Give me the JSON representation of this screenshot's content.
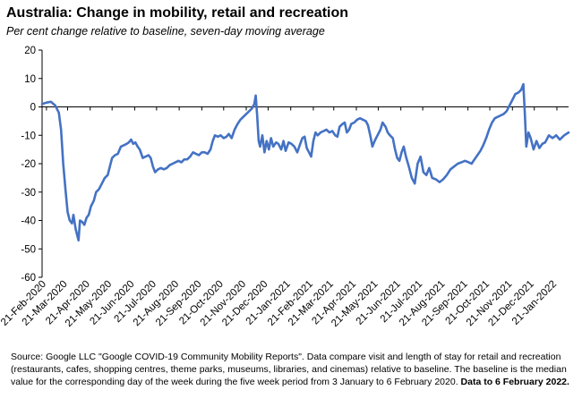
{
  "title": "Australia: Change in mobility, retail and recreation",
  "subtitle": "Per cent change relative to baseline, seven-day moving average",
  "source": {
    "text": "Source: Google LLC \"Google COVID-19 Community Mobility Reports\".  Data compare visit and length of stay for retail and recreation (restaurants, cafes, shopping centres, theme parks, museums, libraries, and cinemas) relative to baseline.  The baseline is the median value for the corresponding day of the week during the five week period from 3 January to 6 February 2020. ",
    "bold": "Data to 6 February 2022."
  },
  "colors": {
    "line": "#4472C4",
    "axis": "#000000"
  },
  "chart_data": {
    "type": "line",
    "title": "Australia: Change in mobility, retail and recreation",
    "subtitle": "Per cent change relative to baseline, seven-day moving average",
    "xlabel": "",
    "ylabel": "",
    "ylim": [
      -60,
      20
    ],
    "yticks": [
      20,
      10,
      0,
      -10,
      -20,
      -30,
      -40,
      -50,
      -60
    ],
    "grid": false,
    "legend": "none",
    "xticks": [
      {
        "date": "2020-02-21",
        "label": "21-Feb-2020"
      },
      {
        "date": "2020-03-21",
        "label": "21-Mar-2020"
      },
      {
        "date": "2020-04-21",
        "label": "21-Apr-2020"
      },
      {
        "date": "2020-05-21",
        "label": "21-May-2020"
      },
      {
        "date": "2020-06-21",
        "label": "21-Jun-2020"
      },
      {
        "date": "2020-07-21",
        "label": "21-Jul-2020"
      },
      {
        "date": "2020-08-21",
        "label": "21-Aug-2020"
      },
      {
        "date": "2020-09-21",
        "label": "21-Sep-2020"
      },
      {
        "date": "2020-10-21",
        "label": "21-Oct-2020"
      },
      {
        "date": "2020-11-21",
        "label": "21-Nov-2020"
      },
      {
        "date": "2020-12-21",
        "label": "21-Dec-2020"
      },
      {
        "date": "2021-01-21",
        "label": "21-Jan-2021"
      },
      {
        "date": "2021-02-21",
        "label": "21-Feb-2021"
      },
      {
        "date": "2021-03-21",
        "label": "21-Mar-2021"
      },
      {
        "date": "2021-04-21",
        "label": "21-Apr-2021"
      },
      {
        "date": "2021-05-21",
        "label": "21-May-2021"
      },
      {
        "date": "2021-06-21",
        "label": "21-Jun-2021"
      },
      {
        "date": "2021-07-21",
        "label": "21-Jul-2021"
      },
      {
        "date": "2021-08-21",
        "label": "21-Aug-2021"
      },
      {
        "date": "2021-09-21",
        "label": "21-Sep-2021"
      },
      {
        "date": "2021-10-21",
        "label": "21-Oct-2021"
      },
      {
        "date": "2021-11-21",
        "label": "21-Nov-2021"
      },
      {
        "date": "2021-12-21",
        "label": "21-Dec-2021"
      },
      {
        "date": "2022-01-21",
        "label": "21-Jan-2022"
      }
    ],
    "series": [
      {
        "points": [
          [
            "2020-02-15",
            1.0
          ],
          [
            "2020-02-21",
            1.5
          ],
          [
            "2020-02-27",
            1.8
          ],
          [
            "2020-03-04",
            0.5
          ],
          [
            "2020-03-09",
            -2.0
          ],
          [
            "2020-03-12",
            -8.0
          ],
          [
            "2020-03-15",
            -20.0
          ],
          [
            "2020-03-18",
            -29.0
          ],
          [
            "2020-03-21",
            -37.0
          ],
          [
            "2020-03-24",
            -40.0
          ],
          [
            "2020-03-27",
            -41.0
          ],
          [
            "2020-03-29",
            -38.0
          ],
          [
            "2020-04-01",
            -43.0
          ],
          [
            "2020-04-03",
            -45.0
          ],
          [
            "2020-04-05",
            -47.0
          ],
          [
            "2020-04-07",
            -40.0
          ],
          [
            "2020-04-10",
            -40.5
          ],
          [
            "2020-04-13",
            -41.5
          ],
          [
            "2020-04-16",
            -39.0
          ],
          [
            "2020-04-19",
            -38.0
          ],
          [
            "2020-04-22",
            -35.0
          ],
          [
            "2020-04-26",
            -33.0
          ],
          [
            "2020-04-29",
            -30.0
          ],
          [
            "2020-05-03",
            -29.0
          ],
          [
            "2020-05-07",
            -27.0
          ],
          [
            "2020-05-11",
            -25.0
          ],
          [
            "2020-05-15",
            -24.0
          ],
          [
            "2020-05-18",
            -21.0
          ],
          [
            "2020-05-21",
            -18.0
          ],
          [
            "2020-05-25",
            -17.0
          ],
          [
            "2020-05-29",
            -16.5
          ],
          [
            "2020-06-02",
            -14.0
          ],
          [
            "2020-06-06",
            -13.5
          ],
          [
            "2020-06-10",
            -13.0
          ],
          [
            "2020-06-13",
            -12.5
          ],
          [
            "2020-06-16",
            -11.5
          ],
          [
            "2020-06-19",
            -13.0
          ],
          [
            "2020-06-22",
            -12.5
          ],
          [
            "2020-06-25",
            -14.0
          ],
          [
            "2020-06-28",
            -15.0
          ],
          [
            "2020-07-02",
            -18.0
          ],
          [
            "2020-07-06",
            -17.5
          ],
          [
            "2020-07-10",
            -17.0
          ],
          [
            "2020-07-13",
            -18.0
          ],
          [
            "2020-07-16",
            -21.0
          ],
          [
            "2020-07-19",
            -23.0
          ],
          [
            "2020-07-23",
            -22.0
          ],
          [
            "2020-07-27",
            -21.5
          ],
          [
            "2020-07-31",
            -22.0
          ],
          [
            "2020-08-04",
            -21.5
          ],
          [
            "2020-08-08",
            -20.5
          ],
          [
            "2020-08-12",
            -20.0
          ],
          [
            "2020-08-16",
            -19.5
          ],
          [
            "2020-08-20",
            -19.0
          ],
          [
            "2020-08-24",
            -19.5
          ],
          [
            "2020-08-28",
            -18.5
          ],
          [
            "2020-09-01",
            -18.5
          ],
          [
            "2020-09-05",
            -17.5
          ],
          [
            "2020-09-09",
            -16.0
          ],
          [
            "2020-09-13",
            -16.5
          ],
          [
            "2020-09-17",
            -17.0
          ],
          [
            "2020-09-21",
            -16.0
          ],
          [
            "2020-09-25",
            -16.0
          ],
          [
            "2020-09-29",
            -16.5
          ],
          [
            "2020-10-03",
            -15.0
          ],
          [
            "2020-10-06",
            -12.0
          ],
          [
            "2020-10-09",
            -10.0
          ],
          [
            "2020-10-13",
            -10.5
          ],
          [
            "2020-10-17",
            -10.0
          ],
          [
            "2020-10-21",
            -11.0
          ],
          [
            "2020-10-25",
            -10.5
          ],
          [
            "2020-10-28",
            -9.5
          ],
          [
            "2020-11-01",
            -11.0
          ],
          [
            "2020-11-05",
            -8.0
          ],
          [
            "2020-11-09",
            -6.0
          ],
          [
            "2020-11-13",
            -4.5
          ],
          [
            "2020-11-17",
            -3.5
          ],
          [
            "2020-11-21",
            -2.5
          ],
          [
            "2020-11-25",
            -1.5
          ],
          [
            "2020-11-29",
            -0.5
          ],
          [
            "2020-12-02",
            1.0
          ],
          [
            "2020-12-04",
            4.0
          ],
          [
            "2020-12-06",
            -3.0
          ],
          [
            "2020-12-08",
            -12.0
          ],
          [
            "2020-12-10",
            -14.0
          ],
          [
            "2020-12-13",
            -10.0
          ],
          [
            "2020-12-16",
            -16.0
          ],
          [
            "2020-12-19",
            -12.0
          ],
          [
            "2020-12-22",
            -15.0
          ],
          [
            "2020-12-25",
            -11.0
          ],
          [
            "2020-12-28",
            -14.0
          ],
          [
            "2021-01-01",
            -12.5
          ],
          [
            "2021-01-04",
            -13.0
          ],
          [
            "2021-01-08",
            -15.0
          ],
          [
            "2021-01-11",
            -12.0
          ],
          [
            "2021-01-14",
            -15.5
          ],
          [
            "2021-01-18",
            -12.5
          ],
          [
            "2021-01-22",
            -13.0
          ],
          [
            "2021-01-26",
            -14.0
          ],
          [
            "2021-01-30",
            -16.0
          ],
          [
            "2021-02-03",
            -13.0
          ],
          [
            "2021-02-06",
            -11.0
          ],
          [
            "2021-02-09",
            -10.5
          ],
          [
            "2021-02-12",
            -14.5
          ],
          [
            "2021-02-15",
            -16.0
          ],
          [
            "2021-02-18",
            -17.5
          ],
          [
            "2021-02-21",
            -12.0
          ],
          [
            "2021-02-24",
            -9.0
          ],
          [
            "2021-02-27",
            -10.0
          ],
          [
            "2021-03-03",
            -9.0
          ],
          [
            "2021-03-07",
            -8.5
          ],
          [
            "2021-03-11",
            -8.0
          ],
          [
            "2021-03-15",
            -9.0
          ],
          [
            "2021-03-19",
            -8.5
          ],
          [
            "2021-03-23",
            -10.0
          ],
          [
            "2021-03-26",
            -10.5
          ],
          [
            "2021-03-29",
            -7.0
          ],
          [
            "2021-04-02",
            -6.0
          ],
          [
            "2021-04-05",
            -5.5
          ],
          [
            "2021-04-08",
            -9.0
          ],
          [
            "2021-04-11",
            -8.0
          ],
          [
            "2021-04-14",
            -6.0
          ],
          [
            "2021-04-18",
            -5.5
          ],
          [
            "2021-04-22",
            -4.5
          ],
          [
            "2021-04-26",
            -4.0
          ],
          [
            "2021-04-30",
            -4.5
          ],
          [
            "2021-05-04",
            -5.0
          ],
          [
            "2021-05-07",
            -6.5
          ],
          [
            "2021-05-10",
            -10.0
          ],
          [
            "2021-05-13",
            -14.0
          ],
          [
            "2021-05-16",
            -12.0
          ],
          [
            "2021-05-20",
            -10.0
          ],
          [
            "2021-05-24",
            -8.0
          ],
          [
            "2021-05-27",
            -5.5
          ],
          [
            "2021-05-31",
            -7.0
          ],
          [
            "2021-06-03",
            -9.0
          ],
          [
            "2021-06-06",
            -10.0
          ],
          [
            "2021-06-10",
            -11.0
          ],
          [
            "2021-06-13",
            -15.0
          ],
          [
            "2021-06-16",
            -18.0
          ],
          [
            "2021-06-19",
            -19.0
          ],
          [
            "2021-06-22",
            -16.0
          ],
          [
            "2021-06-25",
            -14.0
          ],
          [
            "2021-06-28",
            -17.5
          ],
          [
            "2021-07-02",
            -21.0
          ],
          [
            "2021-07-06",
            -25.0
          ],
          [
            "2021-07-10",
            -27.0
          ],
          [
            "2021-07-14",
            -20.0
          ],
          [
            "2021-07-18",
            -17.5
          ],
          [
            "2021-07-22",
            -23.0
          ],
          [
            "2021-07-26",
            -24.0
          ],
          [
            "2021-07-30",
            -21.5
          ],
          [
            "2021-08-03",
            -25.0
          ],
          [
            "2021-08-08",
            -25.5
          ],
          [
            "2021-08-13",
            -26.5
          ],
          [
            "2021-08-18",
            -25.5
          ],
          [
            "2021-08-23",
            -24.0
          ],
          [
            "2021-08-28",
            -22.0
          ],
          [
            "2021-09-02",
            -21.0
          ],
          [
            "2021-09-07",
            -20.0
          ],
          [
            "2021-09-12",
            -19.5
          ],
          [
            "2021-09-17",
            -19.0
          ],
          [
            "2021-09-22",
            -19.5
          ],
          [
            "2021-09-26",
            -20.0
          ],
          [
            "2021-09-30",
            -18.5
          ],
          [
            "2021-10-04",
            -17.0
          ],
          [
            "2021-10-08",
            -15.5
          ],
          [
            "2021-10-12",
            -13.5
          ],
          [
            "2021-10-16",
            -11.0
          ],
          [
            "2021-10-20",
            -8.0
          ],
          [
            "2021-10-24",
            -5.5
          ],
          [
            "2021-10-28",
            -4.0
          ],
          [
            "2021-11-01",
            -3.5
          ],
          [
            "2021-11-05",
            -3.0
          ],
          [
            "2021-11-09",
            -2.5
          ],
          [
            "2021-11-13",
            -1.5
          ],
          [
            "2021-11-17",
            0.5
          ],
          [
            "2021-11-21",
            2.5
          ],
          [
            "2021-11-25",
            4.5
          ],
          [
            "2021-11-29",
            5.0
          ],
          [
            "2021-12-03",
            6.0
          ],
          [
            "2021-12-06",
            8.0
          ],
          [
            "2021-12-08",
            -2.0
          ],
          [
            "2021-12-10",
            -14.0
          ],
          [
            "2021-12-13",
            -9.0
          ],
          [
            "2021-12-16",
            -11.0
          ],
          [
            "2021-12-20",
            -15.0
          ],
          [
            "2021-12-24",
            -12.0
          ],
          [
            "2021-12-28",
            -14.5
          ],
          [
            "2022-01-01",
            -13.0
          ],
          [
            "2022-01-05",
            -12.5
          ],
          [
            "2022-01-10",
            -10.0
          ],
          [
            "2022-01-15",
            -11.0
          ],
          [
            "2022-01-20",
            -10.0
          ],
          [
            "2022-01-25",
            -11.5
          ],
          [
            "2022-01-31",
            -10.0
          ],
          [
            "2022-02-06",
            -9.0
          ]
        ]
      }
    ]
  }
}
